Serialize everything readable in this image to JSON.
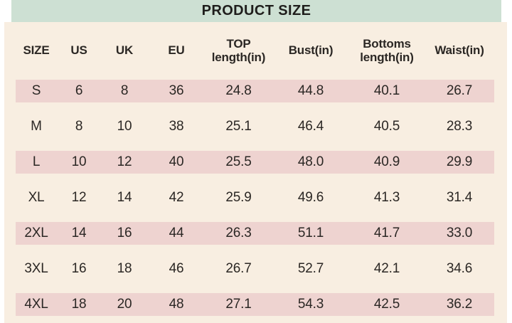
{
  "title": "PRODUCT SIZE",
  "colors": {
    "title_bar_bg": "#cde0d3",
    "title_text": "#1f1e1c",
    "card_bg": "#f8eee1",
    "highlight_row_bg": "#eed3d0",
    "text": "#2b2724"
  },
  "chart_data": {
    "type": "table",
    "title": "PRODUCT SIZE",
    "columns": [
      "SIZE",
      "US",
      "UK",
      "EU",
      "TOP\nlength(in)",
      "Bust(in)",
      "Bottoms\nlength(in)",
      "Waist(in)"
    ],
    "rows": [
      {
        "cells": [
          "S",
          "6",
          "8",
          "36",
          "24.8",
          "44.8",
          "40.1",
          "26.7"
        ],
        "highlight": true
      },
      {
        "cells": [
          "M",
          "8",
          "10",
          "38",
          "25.1",
          "46.4",
          "40.5",
          "28.3"
        ],
        "highlight": false
      },
      {
        "cells": [
          "L",
          "10",
          "12",
          "40",
          "25.5",
          "48.0",
          "40.9",
          "29.9"
        ],
        "highlight": true
      },
      {
        "cells": [
          "XL",
          "12",
          "14",
          "42",
          "25.9",
          "49.6",
          "41.3",
          "31.4"
        ],
        "highlight": false
      },
      {
        "cells": [
          "2XL",
          "14",
          "16",
          "44",
          "26.3",
          "51.1",
          "41.7",
          "33.0"
        ],
        "highlight": true
      },
      {
        "cells": [
          "3XL",
          "16",
          "18",
          "46",
          "26.7",
          "52.7",
          "42.1",
          "34.6"
        ],
        "highlight": false
      },
      {
        "cells": [
          "4XL",
          "18",
          "20",
          "48",
          "27.1",
          "54.3",
          "42.5",
          "36.2"
        ],
        "highlight": true
      }
    ]
  }
}
